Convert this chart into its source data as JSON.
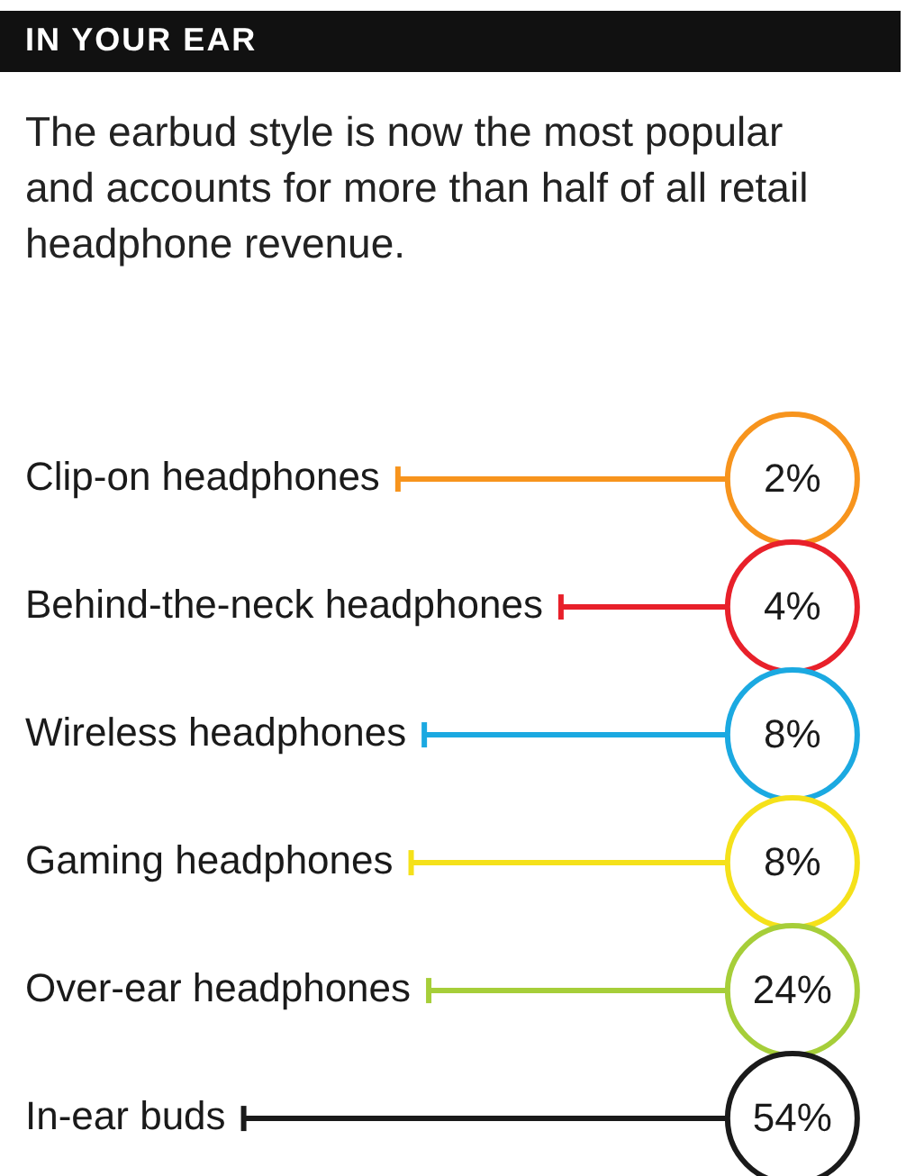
{
  "chart_data": {
    "type": "other",
    "title": "IN YOUR EAR",
    "subtitle": "The earbud style is now the most popular and accounts for more than half of all retail headphone revenue.",
    "categories": [
      "Clip-on headphones",
      "Behind-the-neck headphones",
      "Wireless headphones",
      "Gaming headphones",
      "Over-ear headphones",
      "In-ear buds"
    ],
    "values": [
      2,
      4,
      8,
      8,
      24,
      54
    ],
    "value_labels": [
      "2%",
      "4%",
      "8%",
      "8%",
      "24%",
      "54%"
    ],
    "colors": [
      "#f7941d",
      "#e8202a",
      "#1ba9e1",
      "#f5e11a",
      "#a6ce39",
      "#1a1a1a"
    ]
  }
}
